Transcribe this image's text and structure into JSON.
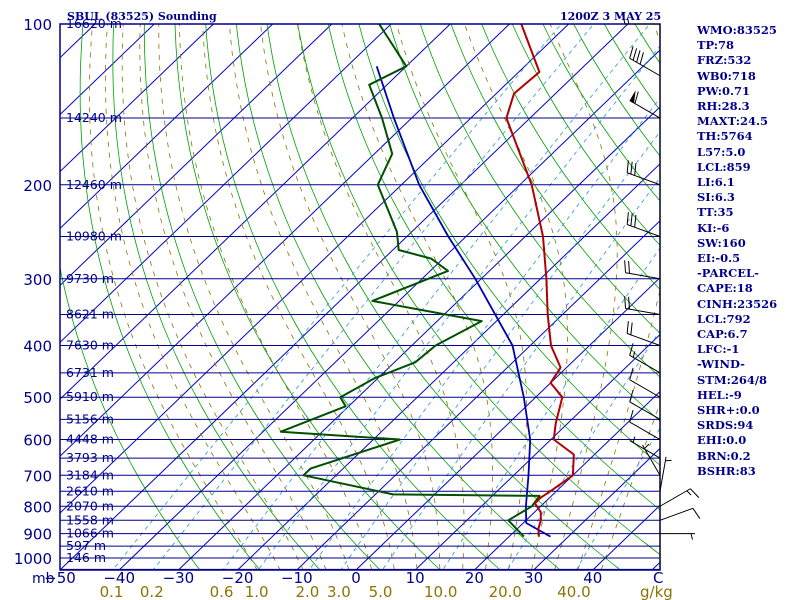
{
  "header": {
    "station": "SBUL (83525) Sounding",
    "time": "1200Z  3 MAY 25"
  },
  "indices": [
    "WMO:83525",
    "TP:78",
    "FRZ:532",
    "WB0:718",
    "PW:0.71",
    "RH:28.3",
    "MAXT:24.5",
    "TH:5764",
    "L57:5.0",
    "LCL:859",
    "LI:6.1",
    "SI:6.3",
    "TT:35",
    "KI:-6",
    "SW:160",
    "EI:-0.5",
    "-PARCEL-",
    "CAPE:18",
    "CINH:23526",
    "LCL:792",
    "CAP:6.7",
    "LFC:-1",
    "-WIND-",
    "STM:264/8",
    "HEL:-9",
    "SHR+:0.0",
    "SRDS:94",
    "EHI:0.0",
    "BRN:0.2",
    "BSHR:83"
  ],
  "colors": {
    "frame": "#00008b",
    "isobar": "#00008b",
    "isotherm": "#0000cd",
    "dry_adiabat": "#00a000",
    "moist_adiabat": "#8b7500",
    "mixing_ratio": "#3aa0d0",
    "temperature": "#b00000",
    "dewpoint": "#005000",
    "parcel": "#0000b0",
    "wind_barb": "#000000",
    "mixing_ratio_label": "#8b7500"
  },
  "chart_data": {
    "type": "skew-t log-p",
    "pressure_axis_label": "mb",
    "x_unit": "C",
    "mixing_ratio_unit": "g/kg",
    "pressure_ticks": [
      100,
      200,
      300,
      400,
      500,
      600,
      700,
      800,
      900,
      1000
    ],
    "temperature_ticks": [
      -50,
      -40,
      -30,
      -20,
      -10,
      0,
      10,
      20,
      30,
      40
    ],
    "mixing_ratio_labels": [
      "0.1",
      "0.2",
      "0.6",
      "1.0",
      "2.0",
      "3.0",
      "5.0",
      "10.0",
      "20.0",
      "40.0"
    ],
    "height_labels": [
      {
        "p": 100,
        "label": "16620 m"
      },
      {
        "p": 150,
        "label": "14240 m"
      },
      {
        "p": 200,
        "label": "12460 m"
      },
      {
        "p": 250,
        "label": "10980 m"
      },
      {
        "p": 300,
        "label": "9730 m"
      },
      {
        "p": 350,
        "label": "8621 m"
      },
      {
        "p": 400,
        "label": "7630 m"
      },
      {
        "p": 450,
        "label": "6731 m"
      },
      {
        "p": 500,
        "label": "5910 m"
      },
      {
        "p": 550,
        "label": "5156 m"
      },
      {
        "p": 600,
        "label": "4448 m"
      },
      {
        "p": 650,
        "label": "3793 m"
      },
      {
        "p": 700,
        "label": "3184 m"
      },
      {
        "p": 750,
        "label": "2610 m"
      },
      {
        "p": 800,
        "label": "2070 m"
      },
      {
        "p": 850,
        "label": "1558 m"
      },
      {
        "p": 900,
        "label": "1066 m"
      },
      {
        "p": 950,
        "label": "597 m"
      },
      {
        "p": 1000,
        "label": "146 m"
      }
    ],
    "temperature_profile": [
      {
        "p": 912,
        "t": 25.0
      },
      {
        "p": 880,
        "t": 23.5
      },
      {
        "p": 850,
        "t": 22.5
      },
      {
        "p": 820,
        "t": 21.0
      },
      {
        "p": 790,
        "t": 18.5
      },
      {
        "p": 770,
        "t": 18.5
      },
      {
        "p": 750,
        "t": 19.0
      },
      {
        "p": 700,
        "t": 20.0
      },
      {
        "p": 640,
        "t": 16.5
      },
      {
        "p": 600,
        "t": 10.5
      },
      {
        "p": 560,
        "t": 8.0
      },
      {
        "p": 500,
        "t": 4.5
      },
      {
        "p": 470,
        "t": 0.0
      },
      {
        "p": 440,
        "t": -1.0
      },
      {
        "p": 400,
        "t": -6.5
      },
      {
        "p": 350,
        "t": -12.5
      },
      {
        "p": 300,
        "t": -19.0
      },
      {
        "p": 250,
        "t": -27.0
      },
      {
        "p": 200,
        "t": -38.0
      },
      {
        "p": 150,
        "t": -54.0
      },
      {
        "p": 135,
        "t": -57.0
      },
      {
        "p": 123,
        "t": -56.5
      },
      {
        "p": 100,
        "t": -68.0
      }
    ],
    "dewpoint_profile": [
      {
        "p": 912,
        "t": 22.5
      },
      {
        "p": 850,
        "t": 17.0
      },
      {
        "p": 800,
        "t": 18.5
      },
      {
        "p": 765,
        "t": 18.0
      },
      {
        "p": 760,
        "t": -7.0
      },
      {
        "p": 700,
        "t": -25.5
      },
      {
        "p": 680,
        "t": -25.5
      },
      {
        "p": 600,
        "t": -15.5
      },
      {
        "p": 580,
        "t": -37.0
      },
      {
        "p": 520,
        "t": -30.5
      },
      {
        "p": 500,
        "t": -33.0
      },
      {
        "p": 460,
        "t": -30.5
      },
      {
        "p": 430,
        "t": -26.5
      },
      {
        "p": 400,
        "t": -26.0
      },
      {
        "p": 360,
        "t": -22.5
      },
      {
        "p": 330,
        "t": -44.5
      },
      {
        "p": 290,
        "t": -37.0
      },
      {
        "p": 275,
        "t": -42.0
      },
      {
        "p": 265,
        "t": -49.0
      },
      {
        "p": 245,
        "t": -52.5
      },
      {
        "p": 200,
        "t": -64.0
      },
      {
        "p": 175,
        "t": -67.0
      },
      {
        "p": 150,
        "t": -75.0
      },
      {
        "p": 130,
        "t": -83.0
      },
      {
        "p": 120,
        "t": -80.0
      },
      {
        "p": 100,
        "t": -92.0
      }
    ],
    "parcel_profile": [
      {
        "p": 912,
        "t": 27.0
      },
      {
        "p": 860,
        "t": 20.5
      },
      {
        "p": 800,
        "t": 17.5
      },
      {
        "p": 700,
        "t": 12.5
      },
      {
        "p": 600,
        "t": 6.5
      },
      {
        "p": 500,
        "t": -2.0
      },
      {
        "p": 400,
        "t": -13.0
      },
      {
        "p": 300,
        "t": -31.0
      },
      {
        "p": 250,
        "t": -43.0
      },
      {
        "p": 200,
        "t": -57.0
      },
      {
        "p": 150,
        "t": -73.0
      },
      {
        "p": 120,
        "t": -85.0
      }
    ],
    "wind_barbs": [
      {
        "p": 900,
        "dir": 90,
        "spd": 5
      },
      {
        "p": 850,
        "dir": 70,
        "spd": 10
      },
      {
        "p": 800,
        "dir": 60,
        "spd": 15
      },
      {
        "p": 750,
        "dir": 10,
        "spd": 5
      },
      {
        "p": 700,
        "dir": 330,
        "spd": 5
      },
      {
        "p": 650,
        "dir": 300,
        "spd": 5
      },
      {
        "p": 600,
        "dir": 300,
        "spd": 10
      },
      {
        "p": 550,
        "dir": 300,
        "spd": 10
      },
      {
        "p": 500,
        "dir": 300,
        "spd": 10
      },
      {
        "p": 450,
        "dir": 300,
        "spd": 15
      },
      {
        "p": 400,
        "dir": 290,
        "spd": 20
      },
      {
        "p": 350,
        "dir": 280,
        "spd": 20
      },
      {
        "p": 300,
        "dir": 280,
        "spd": 20
      },
      {
        "p": 250,
        "dir": 290,
        "spd": 30
      },
      {
        "p": 200,
        "dir": 290,
        "spd": 30
      },
      {
        "p": 150,
        "dir": 300,
        "spd": 60
      },
      {
        "p": 125,
        "dir": 300,
        "spd": 40
      },
      {
        "p": 100,
        "dir": 270,
        "spd": 15
      }
    ]
  }
}
